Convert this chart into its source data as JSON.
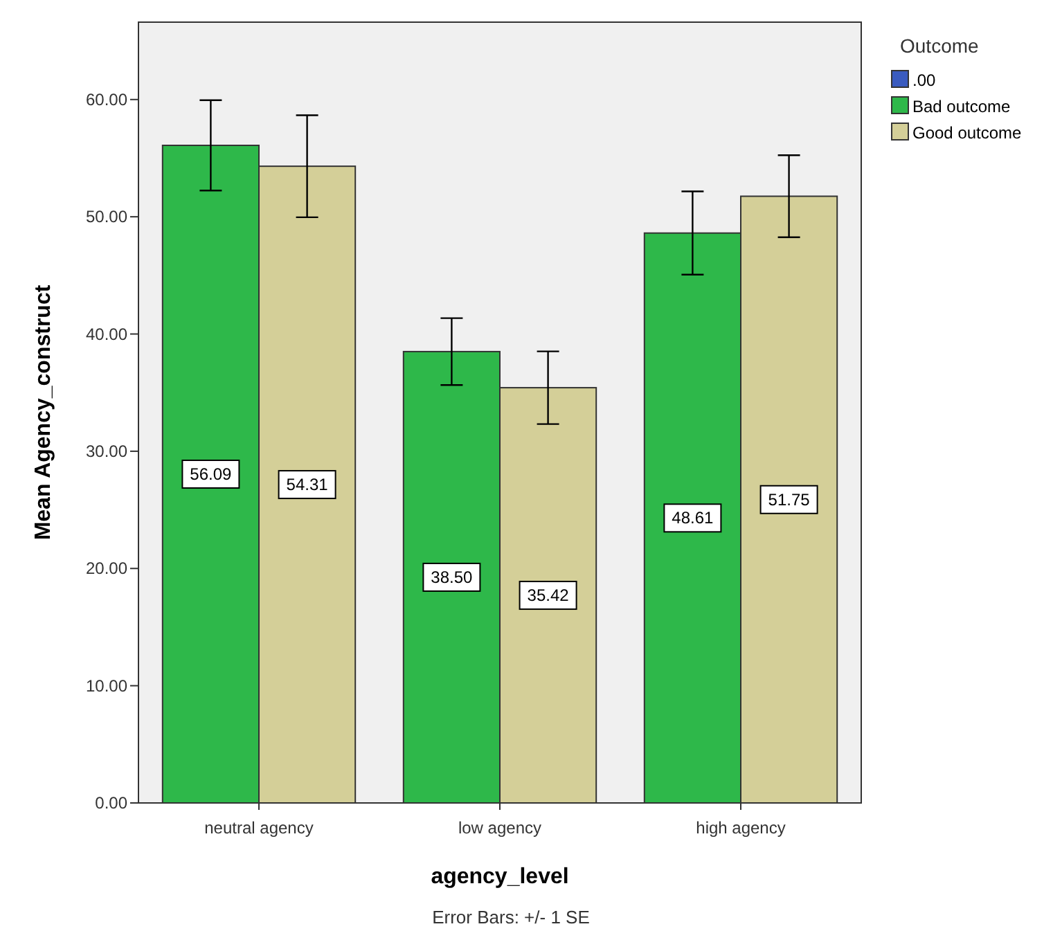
{
  "chart_data": {
    "type": "bar",
    "xlabel": "agency_level",
    "ylabel": "Mean Agency_construct",
    "legend_title": "Outcome",
    "categories": [
      "neutral agency",
      "low agency",
      "high agency"
    ],
    "series": [
      {
        "name": ".00",
        "color": "#3a5bbf",
        "values": [
          null,
          null,
          null
        ]
      },
      {
        "name": "Bad outcome",
        "color": "#2eb84a",
        "values": [
          56.09,
          38.5,
          48.61
        ],
        "errors": [
          3.85,
          2.85,
          3.55
        ],
        "value_labels": [
          "56.09",
          "38.50",
          "48.61"
        ]
      },
      {
        "name": "Good outcome",
        "color": "#d4cf98",
        "values": [
          54.31,
          35.42,
          51.75
        ],
        "errors": [
          4.35,
          3.1,
          3.5
        ],
        "value_labels": [
          "54.31",
          "35.42",
          "51.75"
        ]
      }
    ],
    "ylim": [
      0,
      66.6
    ],
    "yticks": [
      {
        "value": 0,
        "label": "0.00"
      },
      {
        "value": 10,
        "label": "10.00"
      },
      {
        "value": 20,
        "label": "20.00"
      },
      {
        "value": 30,
        "label": "30.00"
      },
      {
        "value": 40,
        "label": "40.00"
      },
      {
        "value": 50,
        "label": "50.00"
      },
      {
        "value": 60,
        "label": "60.00"
      }
    ],
    "legend": "right",
    "grid": false,
    "annotations": [
      "Error Bars: +/- 1 SE"
    ]
  }
}
